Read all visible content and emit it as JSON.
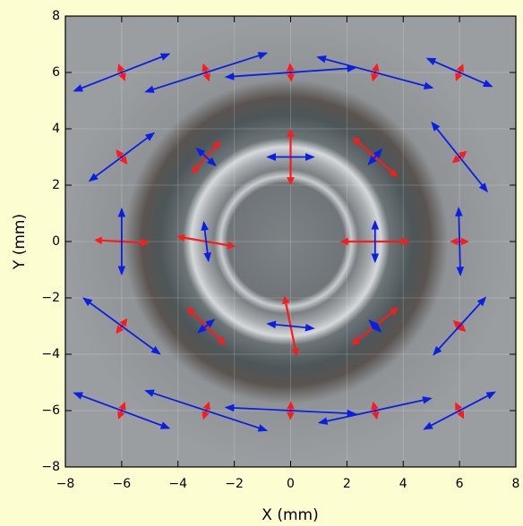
{
  "chart_data": {
    "type": "quiver",
    "x_label": "X (mm)",
    "y_label": "Y (mm)",
    "xlim": [
      -8,
      8
    ],
    "ylim": [
      -8,
      8
    ],
    "xticks": [
      {
        "value": -8,
        "label": "−8"
      },
      {
        "value": -6,
        "label": "−6"
      },
      {
        "value": -4,
        "label": "−4"
      },
      {
        "value": -2,
        "label": "−2"
      },
      0,
      2,
      4,
      6,
      8
    ],
    "yticks": [
      {
        "value": -8,
        "label": "−8"
      },
      {
        "value": -6,
        "label": "−6"
      },
      {
        "value": -4,
        "label": "−4"
      },
      {
        "value": -2,
        "label": "−2"
      },
      0,
      2,
      4,
      6,
      8
    ],
    "grid": true,
    "x": [
      -6,
      -3,
      0,
      3,
      6,
      -6,
      -3,
      0,
      3,
      6,
      -6,
      -3,
      3,
      6,
      -6,
      -3,
      0,
      3,
      6,
      -6,
      -3,
      0,
      3,
      6
    ],
    "y": [
      6,
      6,
      6,
      6,
      6,
      3,
      3,
      3,
      3,
      3,
      0,
      0,
      0,
      0,
      -3,
      -3,
      -3,
      -3,
      -3,
      -6,
      -6,
      -6,
      -6,
      -6
    ],
    "series": [
      {
        "color": "#ff1a1a",
        "u": [
          -0.1,
          -0.09,
          -0.02,
          0.07,
          0.11,
          -0.17,
          0.48,
          0,
          0.76,
          0.22,
          0.92,
          0.99,
          1.18,
          0.28,
          0.17,
          0.65,
          -0.21,
          0.78,
          -0.19,
          0.1,
          0.09,
          0.01,
          -0.06,
          -0.13
        ],
        "v": [
          0.26,
          0.27,
          0.28,
          0.27,
          0.26,
          0.22,
          0.54,
          0.94,
          -0.67,
          0.18,
          -0.05,
          -0.17,
          0,
          0,
          0.23,
          -0.63,
          1.02,
          0.63,
          0.17,
          0.26,
          0.27,
          0.28,
          0.27,
          0.25
        ]
      },
      {
        "color": "#0a1fe6",
        "u": [
          1.67,
          2.13,
          2.28,
          2.02,
          1.13,
          1.13,
          0.32,
          0.8,
          0.22,
          0.97,
          0,
          -0.08,
          0,
          -0.03,
          1.34,
          0.27,
          0.8,
          0.19,
          0.91,
          1.67,
          2.13,
          2.28,
          1.97,
          1.24
        ],
        "v": [
          0.65,
          0.68,
          0.16,
          -0.54,
          -0.49,
          0.84,
          -0.29,
          0,
          0.25,
          -1.21,
          1.14,
          0.67,
          0.7,
          1.17,
          -0.98,
          0.22,
          -0.08,
          -0.19,
          1.0,
          -0.62,
          -0.7,
          -0.11,
          0.43,
          0.65
        ]
      }
    ]
  }
}
